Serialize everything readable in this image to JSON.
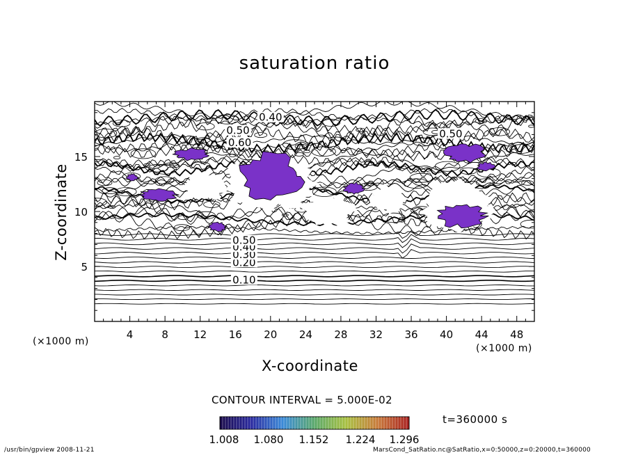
{
  "chart_data": {
    "type": "contour",
    "title": "saturation ratio",
    "xlabel": "X-coordinate",
    "ylabel": "Z-coordinate",
    "x_unit": "(×1000 m)",
    "y_unit": "(×1000 m)",
    "xlim": [
      0,
      50
    ],
    "ylim": [
      0,
      20
    ],
    "x_ticks": [
      4,
      8,
      12,
      16,
      20,
      24,
      28,
      32,
      36,
      40,
      44,
      48
    ],
    "y_ticks": [
      5,
      10,
      15
    ],
    "contour_labels": [
      {
        "value": "0.10",
        "x": 17.0,
        "z": 3.7
      },
      {
        "value": "0.20",
        "x": 17.0,
        "z": 5.3
      },
      {
        "value": "0.30",
        "x": 17.0,
        "z": 6.0
      },
      {
        "value": "0.40",
        "x": 17.0,
        "z": 6.7
      },
      {
        "value": "0.50",
        "x": 17.0,
        "z": 7.3
      },
      {
        "value": "0.50",
        "x": 16.3,
        "z": 17.3
      },
      {
        "value": "0.40",
        "x": 20.0,
        "z": 18.5
      },
      {
        "value": "0.60",
        "x": 16.5,
        "z": 16.2
      },
      {
        "value": "0.50",
        "x": 40.5,
        "z": 17.0
      }
    ],
    "contour_interval": "CONTOUR INTERVAL = 5.000E-02",
    "colorbar": {
      "ticks": [
        "1.008",
        "1.080",
        "1.152",
        "1.224",
        "1.296"
      ],
      "colors": [
        "#1a0a4a",
        "#2a2aa0",
        "#3a8ad8",
        "#5aa86a",
        "#a8c040",
        "#c87a3a",
        "#a82020"
      ]
    },
    "supersaturated_color": "#7a32c8",
    "time_label": "t=360000 s"
  },
  "footer": {
    "left": "/usr/bin/gpview  2008-11-21",
    "right": "MarsCond_SatRatio.nc@SatRatio,x=0:50000,z=0:20000,t=360000"
  }
}
